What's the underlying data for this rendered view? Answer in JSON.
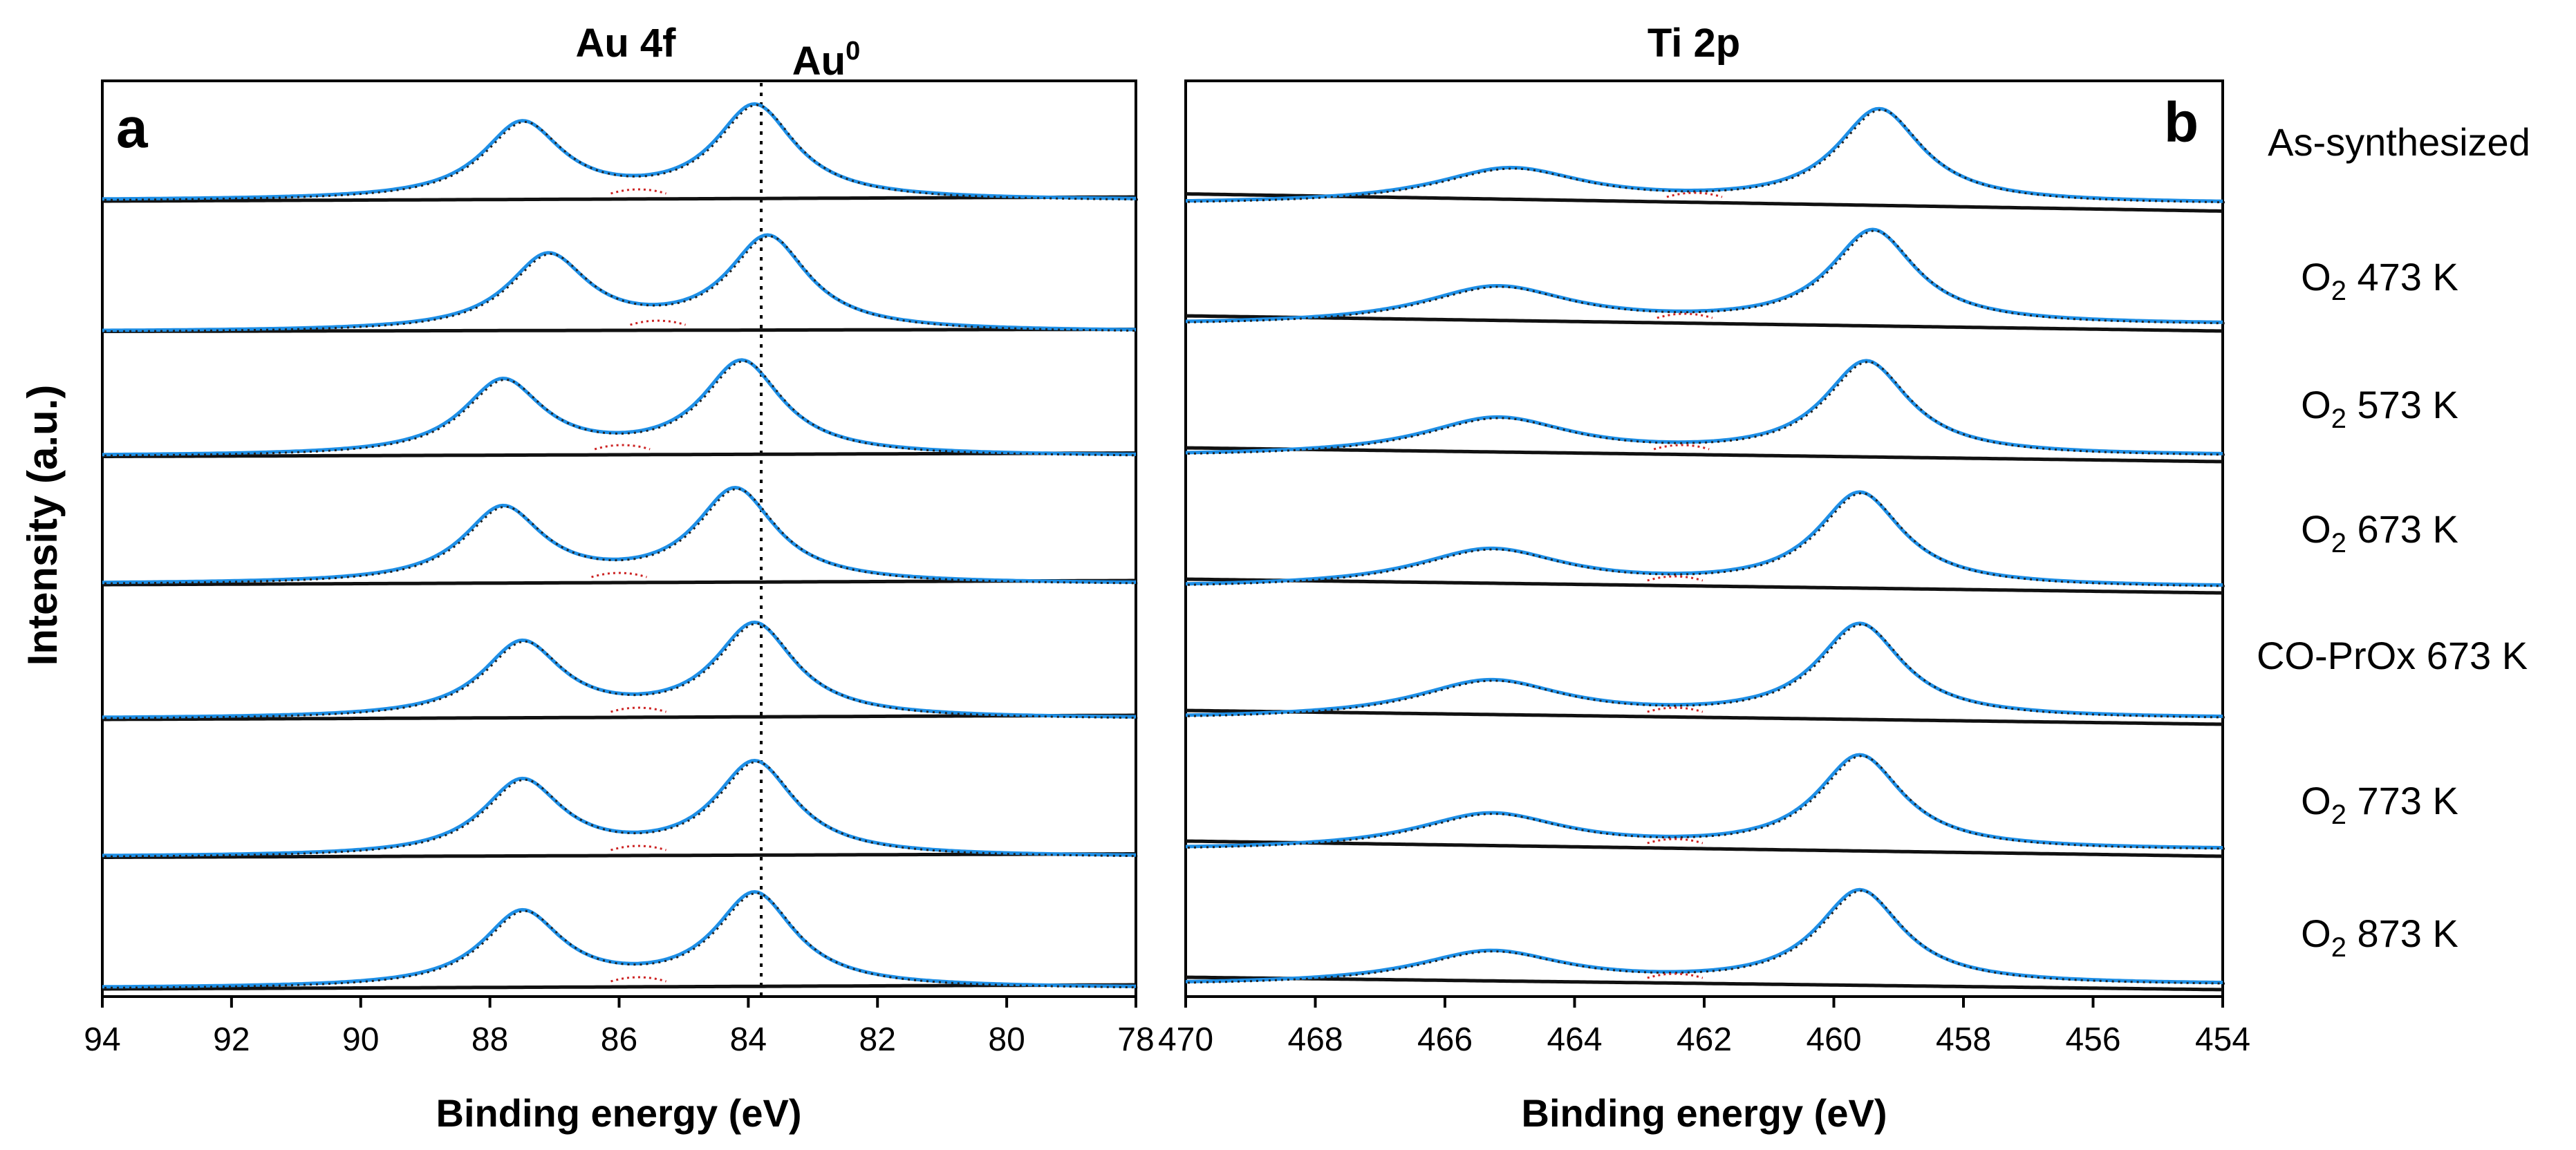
{
  "chart_data": [
    {
      "type": "line",
      "panel": "a",
      "title": "Au 4f",
      "annotation": {
        "text": "Au",
        "superscript": "0",
        "binding_energy": 83.8
      },
      "xlabel": "Binding energy (eV)",
      "ylabel": "Intensity (a.u.)",
      "xlim": [
        94,
        78
      ],
      "xticks": [
        94,
        92,
        90,
        88,
        86,
        84,
        82,
        80,
        78
      ],
      "colors": {
        "fit": "#1e8fe6",
        "raw": "#222222",
        "background": "#111111",
        "residual": "#cc2222"
      },
      "series": [
        {
          "name": "As-synthesized",
          "peaks": [
            {
              "center": 87.5,
              "height": 1.0
            },
            {
              "center": 83.9,
              "height": 1.23
            }
          ]
        },
        {
          "name": "O2 473 K",
          "peaks": [
            {
              "center": 87.1,
              "height": 1.0
            },
            {
              "center": 83.7,
              "height": 1.25
            }
          ]
        },
        {
          "name": "O2 573 K",
          "peaks": [
            {
              "center": 87.8,
              "height": 1.0
            },
            {
              "center": 84.1,
              "height": 1.26
            }
          ]
        },
        {
          "name": "O2 673 K",
          "peaks": [
            {
              "center": 87.8,
              "height": 1.0
            },
            {
              "center": 84.2,
              "height": 1.25
            }
          ]
        },
        {
          "name": "CO-PrOx 673 K",
          "peaks": [
            {
              "center": 87.5,
              "height": 1.0
            },
            {
              "center": 83.9,
              "height": 1.25
            }
          ]
        },
        {
          "name": "O2 773 K",
          "peaks": [
            {
              "center": 87.5,
              "height": 1.0
            },
            {
              "center": 83.9,
              "height": 1.25
            }
          ]
        },
        {
          "name": "O2 873 K",
          "peaks": [
            {
              "center": 87.5,
              "height": 1.0
            },
            {
              "center": 83.9,
              "height": 1.25
            }
          ]
        }
      ]
    },
    {
      "type": "line",
      "panel": "b",
      "title": "Ti 2p",
      "xlabel": "Binding energy (eV)",
      "xlim": [
        470,
        454
      ],
      "xticks": [
        470,
        468,
        466,
        464,
        462,
        460,
        458,
        456,
        454
      ],
      "colors": {
        "fit": "#1e8fe6",
        "raw": "#222222",
        "background": "#111111",
        "residual": "#cc2222"
      },
      "series": [
        {
          "name": "As-synthesized",
          "peaks": [
            {
              "center": 465.0,
              "height": 0.37
            },
            {
              "center": 459.3,
              "height": 1.0
            }
          ]
        },
        {
          "name": "O2 473 K",
          "peaks": [
            {
              "center": 465.2,
              "height": 0.4
            },
            {
              "center": 459.4,
              "height": 1.0
            }
          ]
        },
        {
          "name": "O2 573 K",
          "peaks": [
            {
              "center": 465.2,
              "height": 0.4
            },
            {
              "center": 459.5,
              "height": 1.0
            }
          ]
        },
        {
          "name": "O2 673 K",
          "peaks": [
            {
              "center": 465.3,
              "height": 0.4
            },
            {
              "center": 459.6,
              "height": 1.0
            }
          ]
        },
        {
          "name": "CO-PrOx 673 K",
          "peaks": [
            {
              "center": 465.3,
              "height": 0.4
            },
            {
              "center": 459.6,
              "height": 1.0
            }
          ]
        },
        {
          "name": "O2 773 K",
          "peaks": [
            {
              "center": 465.3,
              "height": 0.38
            },
            {
              "center": 459.6,
              "height": 1.0
            }
          ]
        },
        {
          "name": "O2 873 K",
          "peaks": [
            {
              "center": 465.3,
              "height": 0.35
            },
            {
              "center": 459.6,
              "height": 1.0
            }
          ]
        }
      ]
    }
  ],
  "labels": {
    "panel_a_title": "Au 4f",
    "panel_a_letter": "a",
    "panel_b_title": "Ti 2p",
    "panel_b_letter": "b",
    "au0_text": "Au",
    "au0_sup": "0",
    "y_axis": "Intensity (a.u.)",
    "x_axis_a": "Binding energy (eV)",
    "x_axis_b": "Binding energy (eV)"
  },
  "samples": [
    {
      "prefix": "As-synthesized",
      "sub": "",
      "suffix": ""
    },
    {
      "prefix": "O",
      "sub": "2",
      "suffix": " 473 K"
    },
    {
      "prefix": "O",
      "sub": "2",
      "suffix": " 573 K"
    },
    {
      "prefix": "O",
      "sub": "2",
      "suffix": " 673 K"
    },
    {
      "prefix": "CO-PrOx 673 K",
      "sub": "",
      "suffix": ""
    },
    {
      "prefix": "O",
      "sub": "2",
      "suffix": " 773 K"
    },
    {
      "prefix": "O",
      "sub": "2",
      "suffix": " 873 K"
    }
  ]
}
